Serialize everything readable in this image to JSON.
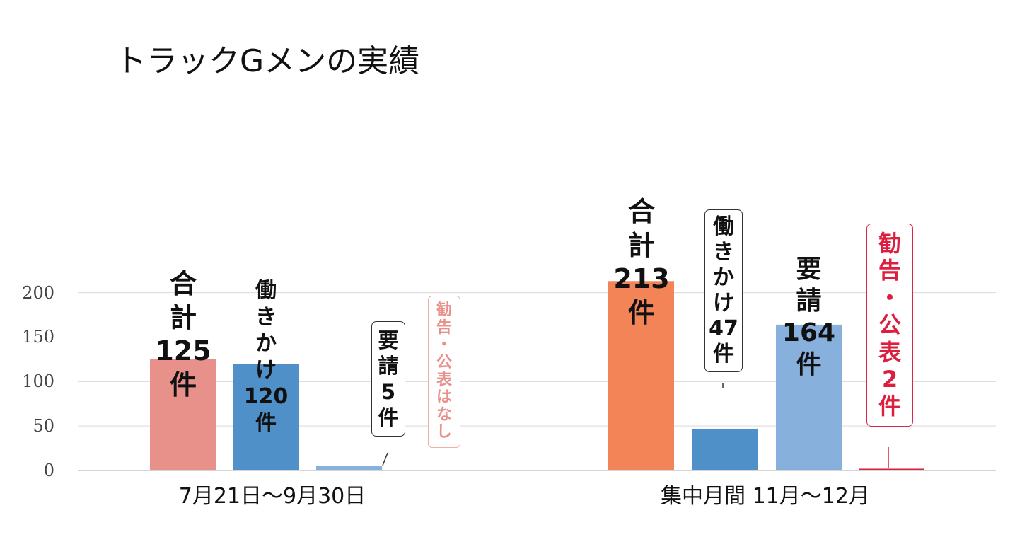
{
  "chart_data": {
    "type": "bar",
    "title": "トラックGメンの実績",
    "categories": [
      "7月21日～9月30日",
      "集中月間 11月～12月"
    ],
    "ylim": [
      0,
      220
    ],
    "yticks": [
      0,
      50,
      100,
      150,
      200
    ],
    "grid": true,
    "series": [
      {
        "name": "合計",
        "values": [
          125,
          213
        ],
        "color": "#e8908a"
      },
      {
        "name": "働きかけ",
        "values": [
          120,
          47
        ],
        "color": "#5090c8"
      },
      {
        "name": "要請",
        "values": [
          5,
          164
        ],
        "color": "#88b0dc"
      },
      {
        "name": "勧告・公表",
        "values": [
          0,
          2
        ],
        "color": "#dd1f3f"
      }
    ],
    "group2_total_color": "#f28458",
    "labels": {
      "g1_total": [
        "合",
        "計",
        "125",
        "件"
      ],
      "g1_work": [
        "働",
        "き",
        "か",
        "け",
        "120",
        "件"
      ],
      "g1_req": [
        "要",
        "請",
        "5",
        "件"
      ],
      "g1_adv": [
        "勧",
        "告",
        "・",
        "公",
        "表",
        "は",
        "な",
        "し"
      ],
      "g2_total": [
        "合",
        "計",
        "213",
        "件"
      ],
      "g2_work": [
        "働",
        "き",
        "か",
        "け",
        "47",
        "件"
      ],
      "g2_req": [
        "要",
        "請",
        "164",
        "件"
      ],
      "g2_adv": [
        "勧",
        "告",
        "・",
        "公",
        "表",
        "2",
        "件"
      ]
    }
  }
}
